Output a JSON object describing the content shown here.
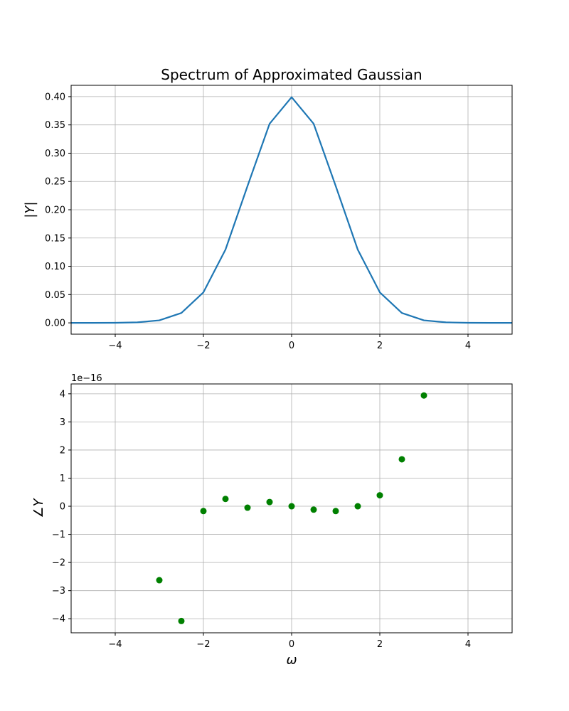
{
  "chart_data": [
    {
      "type": "line",
      "title": "Spectrum of Approximated Gaussian",
      "xlabel": "",
      "ylabel": "|Y|",
      "xlim": [
        -5,
        5
      ],
      "ylim": [
        -0.02,
        0.42
      ],
      "xticks": [
        -4,
        -2,
        0,
        2,
        4
      ],
      "xtick_labels": [
        "−4",
        "−2",
        "0",
        "2",
        "4"
      ],
      "yticks": [
        0.0,
        0.05,
        0.1,
        0.15,
        0.2,
        0.25,
        0.3,
        0.35,
        0.4
      ],
      "ytick_labels": [
        "0.00",
        "0.05",
        "0.10",
        "0.15",
        "0.20",
        "0.25",
        "0.30",
        "0.35",
        "0.40"
      ],
      "grid": true,
      "color": "#1f77b4",
      "series": [
        {
          "x": [
            -5.0,
            -4.5,
            -4.0,
            -3.5,
            -3.0,
            -2.5,
            -2.0,
            -1.5,
            -1.0,
            -0.5,
            0.0,
            0.5,
            1.0,
            1.5,
            2.0,
            2.5,
            3.0,
            3.5,
            4.0,
            4.5,
            5.0
          ],
          "y": [
            0.0,
            0.0,
            0.0001,
            0.0009,
            0.0044,
            0.0175,
            0.054,
            0.1295,
            0.242,
            0.352,
            0.399,
            0.352,
            0.242,
            0.1295,
            0.054,
            0.0175,
            0.0044,
            0.0009,
            0.0001,
            0.0,
            0.0
          ]
        }
      ]
    },
    {
      "type": "scatter",
      "title": "",
      "xlabel": "ω",
      "ylabel": "∠Y",
      "offset_text": "1e−16",
      "xlim": [
        -5,
        5
      ],
      "ylim": [
        -4.5,
        4.35
      ],
      "xticks": [
        -4,
        -2,
        0,
        2,
        4
      ],
      "xtick_labels": [
        "−4",
        "−2",
        "0",
        "2",
        "4"
      ],
      "yticks": [
        -4,
        -3,
        -2,
        -1,
        0,
        1,
        2,
        3,
        4
      ],
      "ytick_labels": [
        "−4",
        "−3",
        "−2",
        "−1",
        "0",
        "1",
        "2",
        "3",
        "4"
      ],
      "grid": true,
      "color": "#008000",
      "series": [
        {
          "x": [
            -3.0,
            -2.5,
            -2.0,
            -1.5,
            -1.0,
            -0.5,
            0.0,
            0.5,
            1.0,
            1.5,
            2.0,
            2.5,
            3.0
          ],
          "y": [
            -2.63,
            -4.08,
            -0.17,
            0.26,
            -0.05,
            0.15,
            0.0,
            -0.12,
            -0.17,
            0.0,
            0.39,
            1.67,
            3.94
          ]
        }
      ]
    }
  ]
}
